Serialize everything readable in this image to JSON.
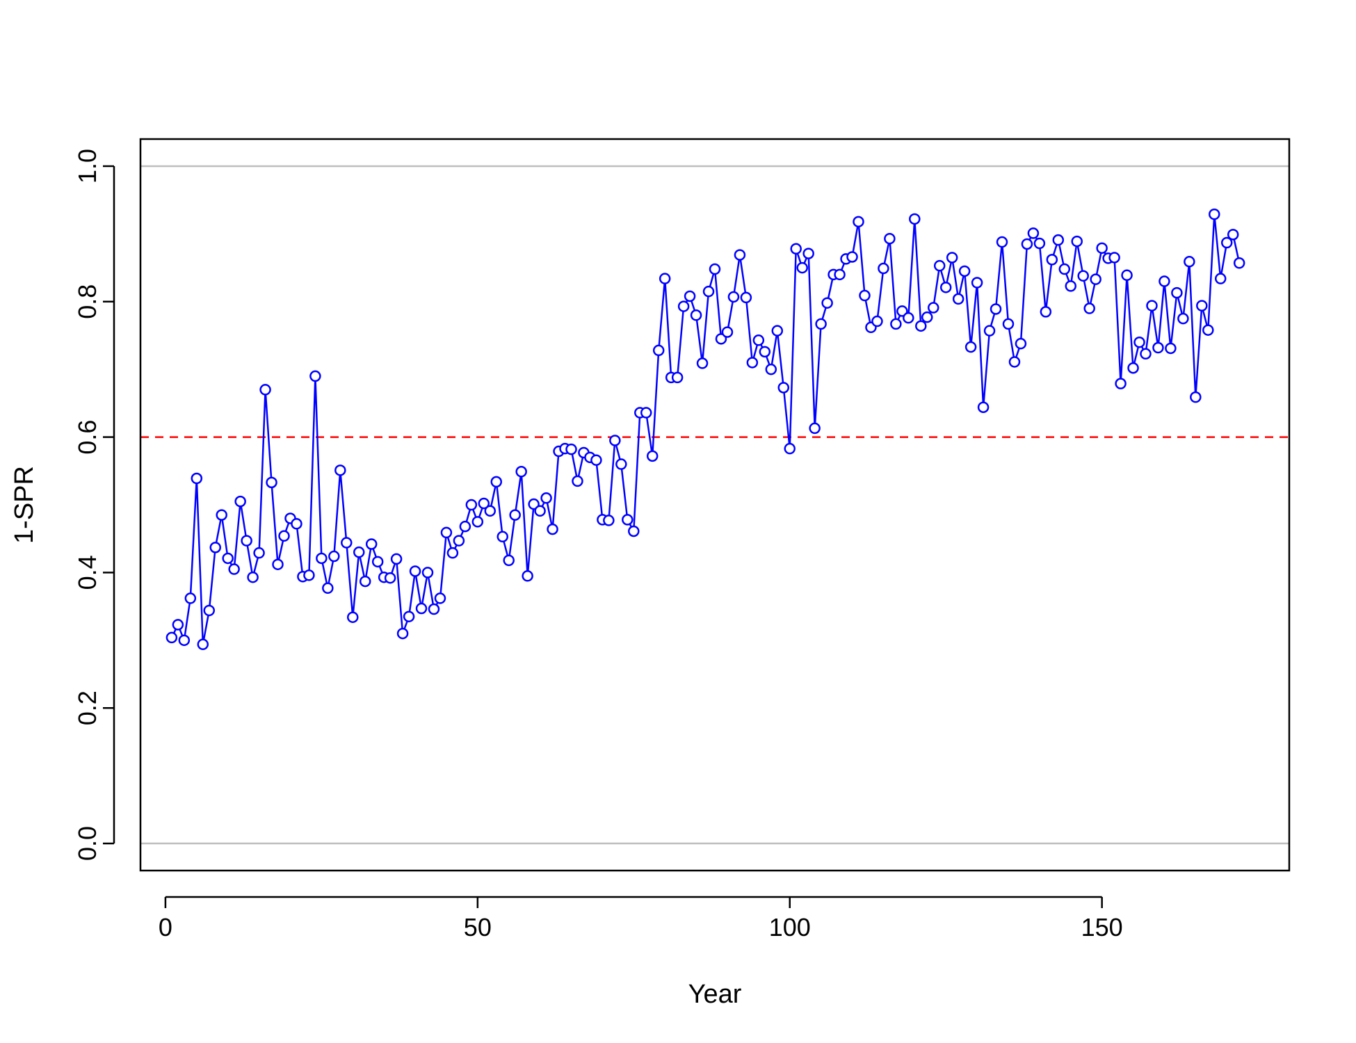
{
  "chart_data": {
    "type": "line",
    "title": "",
    "xlabel": "Year",
    "ylabel": "1-SPR",
    "xlim": [
      -4,
      180
    ],
    "ylim": [
      -0.04,
      1.04
    ],
    "x_ticks": [
      0,
      50,
      100,
      150
    ],
    "y_ticks": [
      0.0,
      0.2,
      0.4,
      0.6,
      0.8,
      1.0
    ],
    "x_tick_labels": [
      "0",
      "50",
      "100",
      "150"
    ],
    "y_tick_labels": [
      "0.0",
      "0.2",
      "0.4",
      "0.6",
      "0.8",
      "1.0"
    ],
    "reference_lines": [
      {
        "y": 0.0,
        "color": "#bebebe",
        "style": "solid"
      },
      {
        "y": 1.0,
        "color": "#bebebe",
        "style": "solid"
      },
      {
        "y": 0.6,
        "color": "#ff0000",
        "style": "dashed"
      }
    ],
    "series": [
      {
        "color": "#0000ff",
        "marker": "open-circle",
        "x": [
          1,
          2,
          3,
          4,
          5,
          6,
          7,
          8,
          9,
          10,
          11,
          12,
          13,
          14,
          15,
          16,
          17,
          18,
          19,
          20,
          21,
          22,
          23,
          24,
          25,
          26,
          27,
          28,
          29,
          30,
          31,
          32,
          33,
          34,
          35,
          36,
          37,
          38,
          39,
          40,
          41,
          42,
          43,
          44,
          45,
          46,
          47,
          48,
          49,
          50,
          51,
          52,
          53,
          54,
          55,
          56,
          57,
          58,
          59,
          60,
          61,
          62,
          63,
          64,
          65,
          66,
          67,
          68,
          69,
          70,
          71,
          72,
          73,
          74,
          75,
          76,
          77,
          78,
          79,
          80,
          81,
          82,
          83,
          84,
          85,
          86,
          87,
          88,
          89,
          90,
          91,
          92,
          93,
          94,
          95,
          96,
          97,
          98,
          99,
          100,
          101,
          102,
          103,
          104,
          105,
          106,
          107,
          108,
          109,
          110,
          111,
          112,
          113,
          114,
          115,
          116,
          117,
          118,
          119,
          120,
          121,
          122,
          123,
          124,
          125,
          126,
          127,
          128,
          129,
          130,
          131,
          132,
          133,
          134,
          135,
          136,
          137,
          138,
          139,
          140,
          141,
          142,
          143,
          144,
          145,
          146,
          147,
          148,
          149,
          150,
          151,
          152,
          153,
          154,
          155,
          156,
          157,
          158,
          159,
          160,
          161,
          162,
          163,
          164,
          165,
          166,
          167,
          168,
          169,
          170,
          171,
          172
        ],
        "y": [
          0.304,
          0.323,
          0.3,
          0.362,
          0.539,
          0.294,
          0.344,
          0.437,
          0.485,
          0.421,
          0.405,
          0.505,
          0.447,
          0.393,
          0.429,
          0.67,
          0.533,
          0.412,
          0.454,
          0.48,
          0.472,
          0.394,
          0.396,
          0.69,
          0.421,
          0.377,
          0.424,
          0.551,
          0.444,
          0.334,
          0.43,
          0.387,
          0.442,
          0.416,
          0.393,
          0.392,
          0.42,
          0.31,
          0.335,
          0.402,
          0.347,
          0.4,
          0.346,
          0.362,
          0.459,
          0.429,
          0.447,
          0.468,
          0.5,
          0.475,
          0.502,
          0.491,
          0.534,
          0.453,
          0.418,
          0.485,
          0.549,
          0.395,
          0.501,
          0.491,
          0.51,
          0.464,
          0.579,
          0.583,
          0.582,
          0.535,
          0.577,
          0.57,
          0.566,
          0.478,
          0.477,
          0.595,
          0.56,
          0.478,
          0.461,
          0.636,
          0.636,
          0.572,
          0.728,
          0.834,
          0.688,
          0.688,
          0.793,
          0.808,
          0.78,
          0.709,
          0.815,
          0.848,
          0.745,
          0.755,
          0.807,
          0.869,
          0.806,
          0.71,
          0.743,
          0.726,
          0.7,
          0.757,
          0.673,
          0.583,
          0.878,
          0.85,
          0.871,
          0.613,
          0.767,
          0.798,
          0.84,
          0.84,
          0.863,
          0.866,
          0.918,
          0.809,
          0.762,
          0.771,
          0.849,
          0.893,
          0.767,
          0.786,
          0.776,
          0.922,
          0.764,
          0.777,
          0.791,
          0.853,
          0.821,
          0.865,
          0.804,
          0.845,
          0.733,
          0.828,
          0.644,
          0.757,
          0.789,
          0.888,
          0.767,
          0.711,
          0.738,
          0.885,
          0.901,
          0.886,
          0.785,
          0.862,
          0.891,
          0.848,
          0.823,
          0.889,
          0.838,
          0.79,
          0.833,
          0.879,
          0.864,
          0.865,
          0.679,
          0.839,
          0.702,
          0.74,
          0.723,
          0.794,
          0.732,
          0.83,
          0.731,
          0.813,
          0.775,
          0.859,
          0.659,
          0.794,
          0.758,
          0.929,
          0.834,
          0.887,
          0.899,
          0.857
        ]
      }
    ]
  }
}
